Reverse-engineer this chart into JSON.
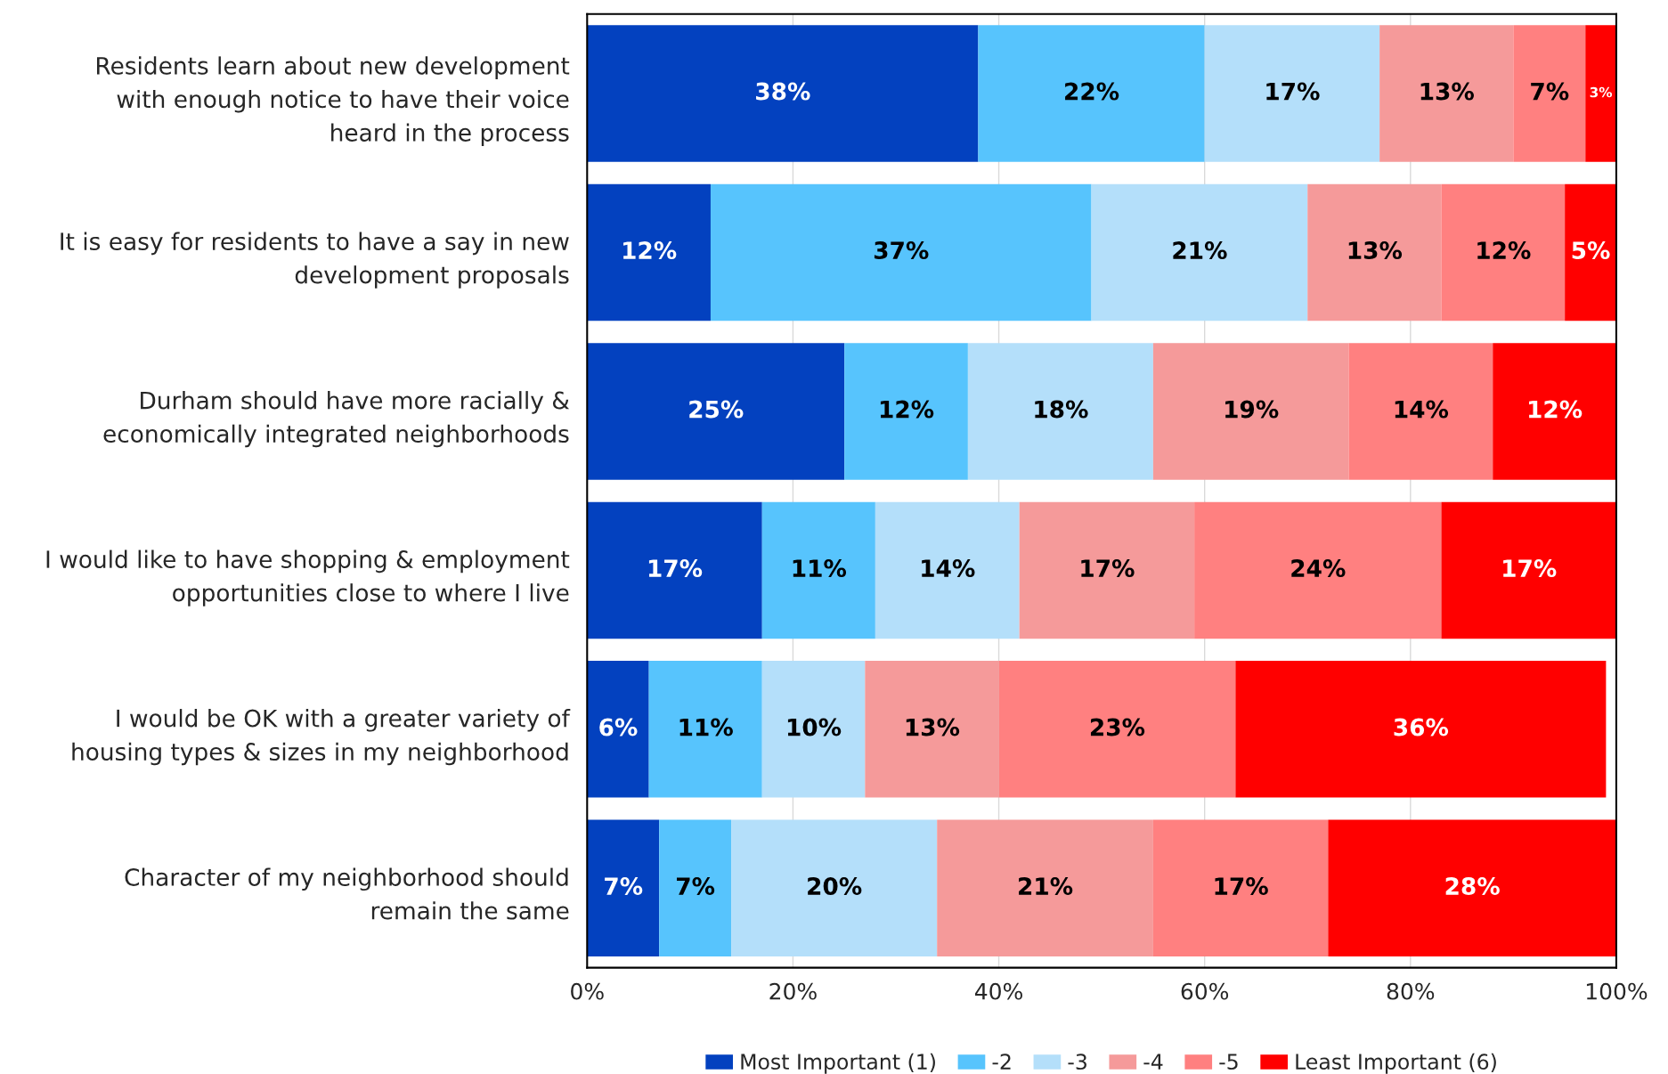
{
  "chart_data": {
    "type": "bar",
    "orientation": "horizontal",
    "stacked": true,
    "categories": [
      "Residents learn about new development\nwith enough notice to have their voice\nheard in the process",
      "It is easy for residents to have a say in new\ndevelopment proposals",
      "Durham should have more racially &\neconomically integrated neighborhoods",
      "I would like to have shopping & employment\nopportunities close to where I live",
      "I would be OK with a greater variety of\nhousing types & sizes in my neighborhood",
      "Character of my neighborhood should\nremain the same"
    ],
    "series": [
      {
        "name": "Most Important (1)",
        "color": "#0341bf",
        "values": [
          38,
          12,
          25,
          17,
          6,
          7
        ],
        "value_labels": [
          "38%",
          "12%",
          "25%",
          "17%",
          "6%",
          "7%"
        ]
      },
      {
        "name": "-2",
        "color": "#57c4fd",
        "values": [
          22,
          37,
          12,
          11,
          11,
          7
        ],
        "value_labels": [
          "22%",
          "37%",
          "12%",
          "11%",
          "11%",
          "7%"
        ]
      },
      {
        "name": "-3",
        "color": "#b4dffa",
        "values": [
          17,
          21,
          18,
          14,
          10,
          20
        ],
        "value_labels": [
          "17%",
          "21%",
          "18%",
          "14%",
          "10%",
          "20%"
        ]
      },
      {
        "name": "-4",
        "color": "#f59a9a",
        "values": [
          13,
          13,
          19,
          17,
          13,
          21
        ],
        "value_labels": [
          "13%",
          "13%",
          "19%",
          "17%",
          "13%",
          "21%"
        ]
      },
      {
        "name": "-5",
        "color": "#ff8080",
        "values": [
          7,
          12,
          14,
          24,
          23,
          17
        ],
        "value_labels": [
          "7%",
          "12%",
          "14%",
          "24%",
          "23%",
          "17%"
        ]
      },
      {
        "name": "Least Important (6)",
        "color": "#ff0000",
        "values": [
          3,
          5,
          12,
          17,
          36,
          28
        ],
        "value_labels": [
          "3%",
          "5%",
          "12%",
          "17%",
          "36%",
          "28%"
        ]
      }
    ],
    "xlim": [
      0,
      100
    ],
    "xticks": [
      {
        "value": 0,
        "label": "0%"
      },
      {
        "value": 20,
        "label": "20%"
      },
      {
        "value": 40,
        "label": "40%"
      },
      {
        "value": 60,
        "label": "60%"
      },
      {
        "value": 80,
        "label": "80%"
      },
      {
        "value": 100,
        "label": "100%"
      }
    ],
    "grid": "x",
    "legend": "bottom"
  }
}
